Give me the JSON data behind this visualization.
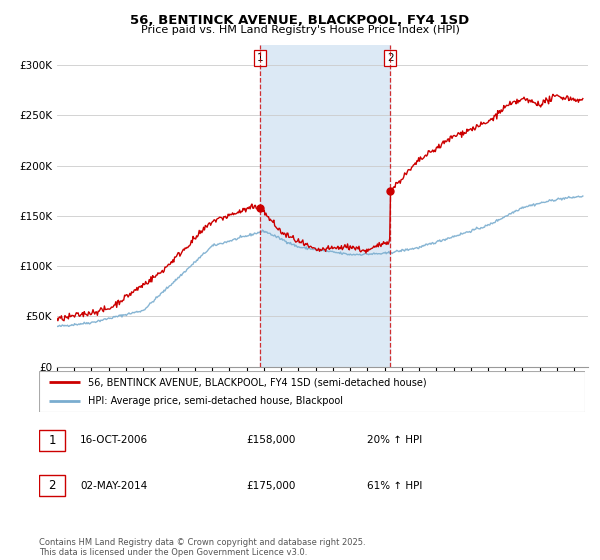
{
  "title": "56, BENTINCK AVENUE, BLACKPOOL, FY4 1SD",
  "subtitle": "Price paid vs. HM Land Registry's House Price Index (HPI)",
  "yticks": [
    0,
    50000,
    100000,
    150000,
    200000,
    250000,
    300000
  ],
  "ytick_labels": [
    "£0",
    "£50K",
    "£100K",
    "£150K",
    "£200K",
    "£250K",
    "£300K"
  ],
  "legend_line1": "56, BENTINCK AVENUE, BLACKPOOL, FY4 1SD (semi-detached house)",
  "legend_line2": "HPI: Average price, semi-detached house, Blackpool",
  "annotation1_date": "16-OCT-2006",
  "annotation1_price": "£158,000",
  "annotation1_hpi": "20% ↑ HPI",
  "annotation2_date": "02-MAY-2014",
  "annotation2_price": "£175,000",
  "annotation2_hpi": "61% ↑ HPI",
  "footer": "Contains HM Land Registry data © Crown copyright and database right 2025.\nThis data is licensed under the Open Government Licence v3.0.",
  "red_color": "#cc0000",
  "blue_color": "#7aadcf",
  "vline1_x": 2006.79,
  "vline2_x": 2014.33,
  "sale1_y": 158000,
  "sale2_y": 175000,
  "shade_color": "#dce9f5",
  "shade_start": 2006.79,
  "shade_end": 2014.33,
  "xlim_left": 1995,
  "xlim_right": 2025.8,
  "ylim_bottom": 0,
  "ylim_top": 320000
}
